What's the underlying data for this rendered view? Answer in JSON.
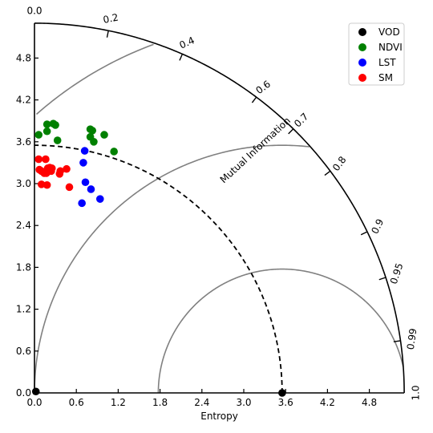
{
  "chart_data": {
    "type": "scatter",
    "subtype": "taylor-diagram",
    "title": "",
    "xlabel": "Entropy",
    "ylabel": "",
    "arc_label": "Mutual Information",
    "xlim": [
      0.0,
      5.3
    ],
    "ylim": [
      0.0,
      5.3
    ],
    "x_ticks": [
      "0.0",
      "0.6",
      "1.2",
      "1.8",
      "2.4",
      "3.0",
      "3.6",
      "4.2",
      "4.8"
    ],
    "y_ticks": [
      "0.0",
      "0.6",
      "1.2",
      "1.8",
      "2.4",
      "3.0",
      "3.6",
      "4.2",
      "4.8"
    ],
    "x_tick_values": [
      0.0,
      0.6,
      1.2,
      1.8,
      2.4,
      3.0,
      3.6,
      4.2,
      4.8
    ],
    "y_tick_values": [
      0.0,
      0.6,
      1.2,
      1.8,
      2.4,
      3.0,
      3.6,
      4.2,
      4.8
    ],
    "arc_ticks": [
      "0.0",
      "0.2",
      "0.4",
      "0.6",
      "0.7",
      "0.8",
      "0.9",
      "0.95",
      "0.99",
      "1.0"
    ],
    "arc_tick_values": [
      0.0,
      0.2,
      0.4,
      0.6,
      0.7,
      0.8,
      0.9,
      0.95,
      0.99,
      1.0
    ],
    "reference_radius": 3.55,
    "grid": false,
    "legend_position": "top-right",
    "series": [
      {
        "name": "VOD",
        "color": "#000000",
        "x": [
          0.02,
          3.55
        ],
        "y": [
          0.02,
          0.0
        ]
      },
      {
        "name": "NDVI",
        "color": "#008000",
        "x": [
          0.06,
          0.18,
          0.18,
          0.27,
          0.3,
          0.33,
          0.8,
          0.83,
          0.8,
          0.85,
          1.0,
          1.14
        ],
        "y": [
          3.7,
          3.85,
          3.75,
          3.86,
          3.84,
          3.62,
          3.78,
          3.76,
          3.67,
          3.6,
          3.7,
          3.46
        ]
      },
      {
        "name": "LST",
        "color": "#0000ff",
        "x": [
          0.72,
          0.7,
          0.73,
          0.81,
          0.94,
          0.68
        ],
        "y": [
          3.47,
          3.3,
          3.02,
          2.92,
          2.78,
          2.72
        ]
      },
      {
        "name": "SM",
        "color": "#ff0000",
        "x": [
          0.06,
          0.16,
          0.07,
          0.1,
          0.14,
          0.17,
          0.19,
          0.22,
          0.25,
          0.24,
          0.37,
          0.36,
          0.46,
          0.1,
          0.18,
          0.5
        ],
        "y": [
          3.35,
          3.35,
          3.2,
          3.18,
          3.15,
          3.15,
          3.22,
          3.23,
          3.22,
          3.18,
          3.18,
          3.14,
          3.21,
          2.99,
          2.98,
          2.95
        ]
      }
    ]
  }
}
